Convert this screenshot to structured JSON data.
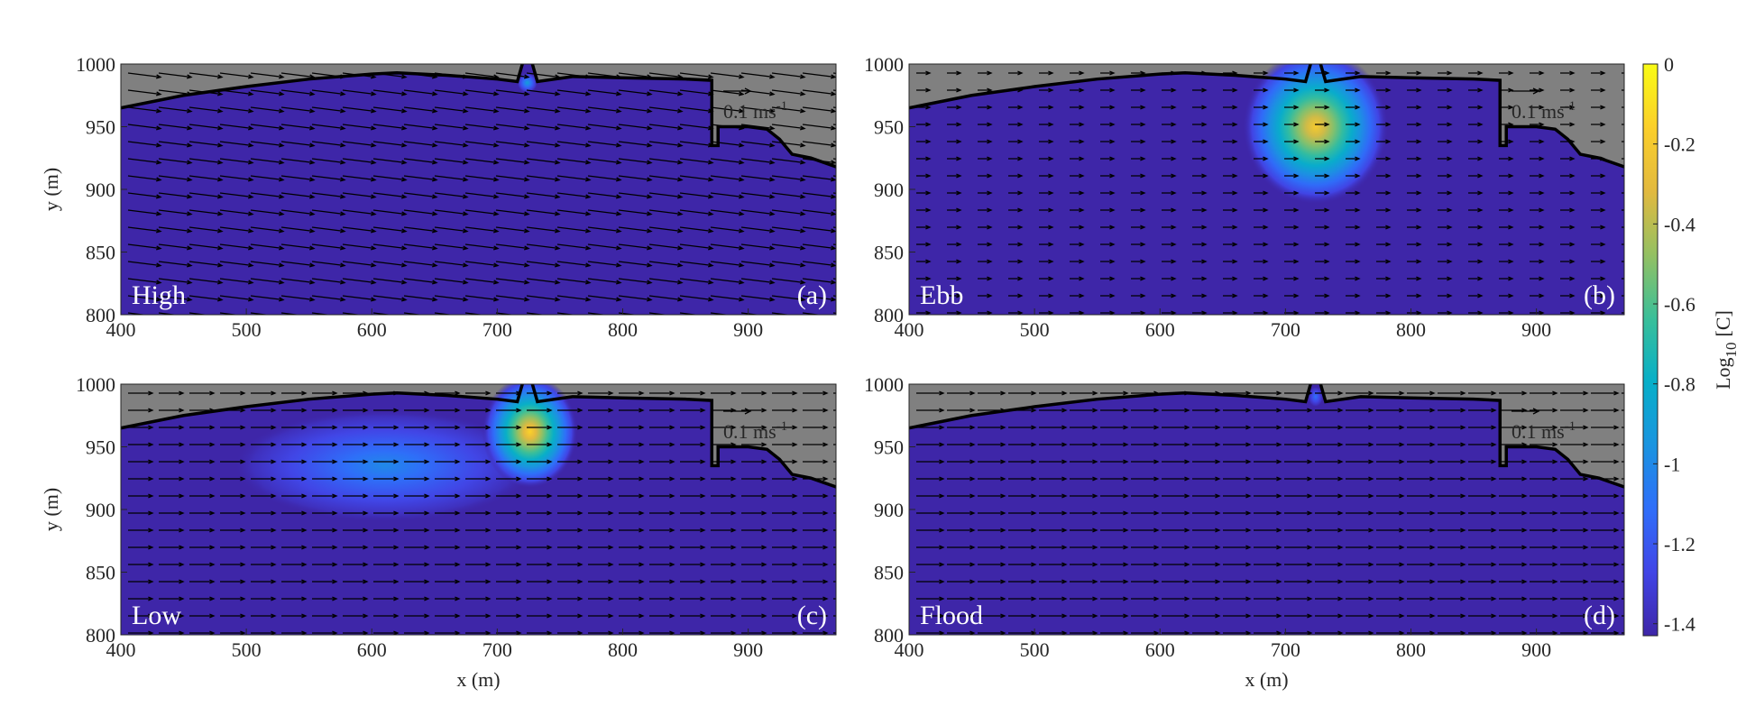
{
  "coastline": {
    "x": [
      400,
      450,
      500,
      550,
      600,
      620,
      660,
      700,
      716,
      720,
      null,
      728,
      732,
      760,
      800,
      850,
      871,
      871,
      876,
      876,
      900,
      915,
      925,
      935,
      950,
      970
    ],
    "y": [
      965,
      975,
      982,
      988,
      992,
      993,
      991,
      988,
      986,
      1000,
      null,
      1000,
      986,
      990,
      989,
      988,
      987,
      935,
      935,
      950,
      950,
      948,
      940,
      928,
      925,
      918
    ]
  },
  "chart_data": [
    {
      "type": "quiver",
      "label": "High",
      "panel": "(a)",
      "ylabel": "y (m)",
      "xlim": [
        400,
        970
      ],
      "ylim": [
        800,
        1000
      ],
      "xticks": [
        400,
        500,
        600,
        700,
        800,
        900
      ],
      "yticks": [
        800,
        850,
        900,
        950,
        1000
      ],
      "flow": {
        "u": 0.12,
        "v": -0.015
      },
      "scale_arrow": {
        "value": 0.1,
        "label": "0.1 ms",
        "sup": "-1"
      },
      "plumes": [
        {
          "x": 724,
          "y": 985,
          "rx": 8,
          "ry": 8,
          "peak": -0.9
        }
      ]
    },
    {
      "type": "quiver",
      "label": "Ebb",
      "panel": "(b)",
      "xlim": [
        400,
        970
      ],
      "ylim": [
        800,
        1000
      ],
      "xticks": [
        400,
        500,
        600,
        700,
        800,
        900
      ],
      "yticks": [
        800,
        850,
        900,
        950,
        1000
      ],
      "flow": {
        "u": 0.05,
        "v": 0
      },
      "scale_arrow": {
        "value": 0.1,
        "label": "0.1 ms",
        "sup": "-1"
      },
      "plumes": [
        {
          "x": 724,
          "y": 950,
          "rx": 58,
          "ry": 62,
          "peak": -0.2
        }
      ]
    },
    {
      "type": "quiver",
      "label": "Low",
      "panel": "(c)",
      "xlabel": "x (m)",
      "ylabel": "y (m)",
      "xlim": [
        400,
        970
      ],
      "ylim": [
        800,
        1000
      ],
      "xticks": [
        400,
        500,
        600,
        700,
        800,
        900
      ],
      "yticks": [
        800,
        850,
        900,
        950,
        1000
      ],
      "flow": {
        "u": 0.09,
        "v": 0
      },
      "scale_arrow": {
        "value": 0.1,
        "label": "0.1 ms",
        "sup": "-1"
      },
      "plumes": [
        {
          "x": 610,
          "y": 935,
          "rx": 120,
          "ry": 45,
          "peak": -1.0
        },
        {
          "x": 726,
          "y": 962,
          "rx": 38,
          "ry": 45,
          "peak": -0.15
        }
      ]
    },
    {
      "type": "quiver",
      "label": "Flood",
      "panel": "(d)",
      "xlabel": "x (m)",
      "xlim": [
        400,
        970
      ],
      "ylim": [
        800,
        1000
      ],
      "xticks": [
        400,
        500,
        600,
        700,
        800,
        900
      ],
      "yticks": [
        800,
        850,
        900,
        950,
        1000
      ],
      "flow": {
        "u": 0.1,
        "v": 0
      },
      "scale_arrow": {
        "value": 0.1,
        "label": "0.1 ms",
        "sup": "-1"
      },
      "plumes": [
        {
          "x": 724,
          "y": 990,
          "rx": 6,
          "ry": 8,
          "peak": -1.1
        }
      ]
    },
    {
      "type": "colorbar",
      "label": {
        "base": "Log",
        "sub": "10",
        "rest": "[C]"
      },
      "clim": [
        -1.43,
        0
      ],
      "ticks": [
        0,
        -0.2,
        -0.4,
        -0.6,
        -0.8,
        -1,
        -1.2,
        -1.4
      ],
      "colors": [
        "#3e26a8",
        "#4145e6",
        "#2f6ef9",
        "#1a94e0",
        "#07afc8",
        "#3abf99",
        "#94c062",
        "#e2b93f",
        "#fbcf2a",
        "#f9fb15"
      ]
    }
  ]
}
